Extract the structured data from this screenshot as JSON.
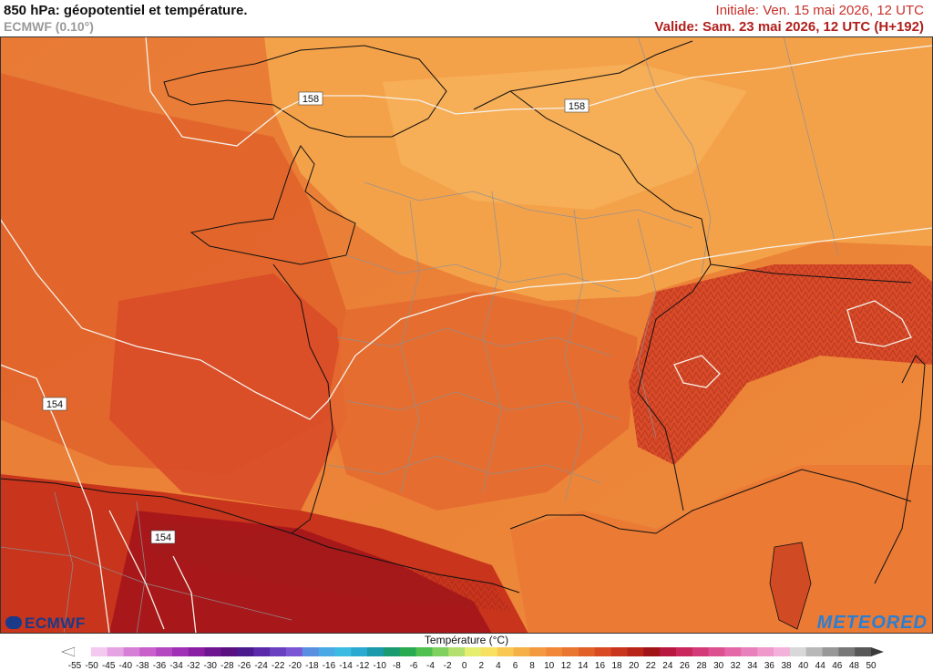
{
  "header": {
    "title": "850 hPa: géopotentiel et température.",
    "model": "ECMWF (0.10°)",
    "initial": "Initiale: Ven. 15 mai 2026, 12 UTC",
    "valid": "Valide: Sam. 23 mai 2026, 12 UTC (H+192)"
  },
  "map": {
    "contours": [
      {
        "label": "158"
      },
      {
        "label": "158"
      },
      {
        "label": "154"
      },
      {
        "label": "154"
      }
    ]
  },
  "legend": {
    "title": "Température (°C)",
    "ticks": [
      "-55",
      "-50",
      "-45",
      "-40",
      "-38",
      "-36",
      "-34",
      "-32",
      "-30",
      "-28",
      "-26",
      "-24",
      "-22",
      "-20",
      "-18",
      "-16",
      "-14",
      "-12",
      "-10",
      "-8",
      "-6",
      "-4",
      "-2",
      "0",
      "2",
      "4",
      "6",
      "8",
      "10",
      "12",
      "14",
      "16",
      "18",
      "20",
      "22",
      "24",
      "26",
      "28",
      "30",
      "32",
      "34",
      "36",
      "38",
      "40",
      "44",
      "46",
      "48",
      "50"
    ],
    "colors": [
      "#ffffff",
      "#f3c9f0",
      "#e5a3e3",
      "#d67fd7",
      "#c860cb",
      "#b448c0",
      "#a030b5",
      "#8a1fa3",
      "#6e1590",
      "#5a1080",
      "#4b1a8c",
      "#5a2aa8",
      "#6a3fc0",
      "#7a55d4",
      "#5a8ee0",
      "#4aa8e4",
      "#3bbbe0",
      "#2aaad0",
      "#1a9aaa",
      "#1a9a70",
      "#2aaa50",
      "#50c050",
      "#80d060",
      "#b4e070",
      "#e6ee70",
      "#f8e060",
      "#f8c850",
      "#f5b048",
      "#f39a40",
      "#f08838",
      "#e87530",
      "#e06028",
      "#d84a22",
      "#c8341c",
      "#b82418",
      "#a01418",
      "#b81840",
      "#c8285c",
      "#d43a78",
      "#dc5090",
      "#e468a8",
      "#e880bc",
      "#ee98cc",
      "#f2b0da",
      "#d8d8d8",
      "#b8b8b8",
      "#989898",
      "#787878",
      "#585858"
    ],
    "arrow_color": "#3a3a3a"
  },
  "logos": {
    "left": "ECMWF",
    "right": "METEORED"
  }
}
